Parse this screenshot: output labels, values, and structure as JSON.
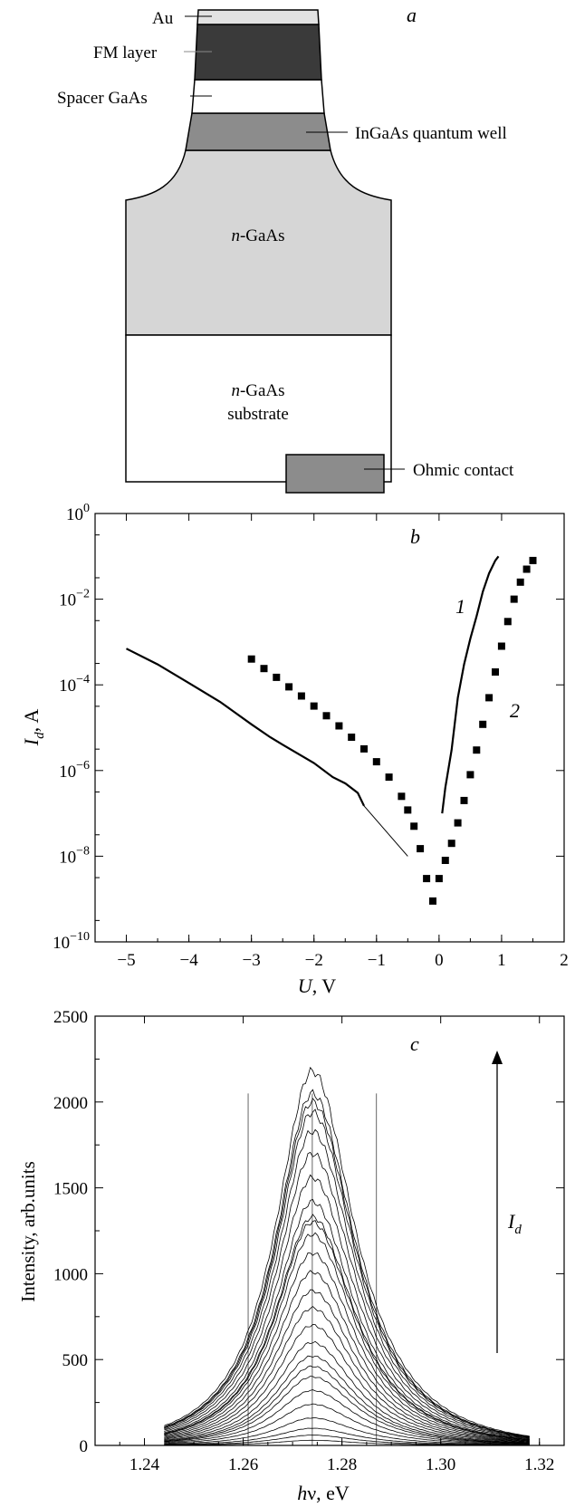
{
  "panel_a": {
    "label": "a",
    "layers": {
      "au": "Au",
      "fm": "FM layer",
      "spacer": "Spacer GaAs",
      "qw": "InGaAs quantum well",
      "ngaas_prefix": "n",
      "ngaas_suffix": "-GaAs",
      "substrate_line2": "substrate",
      "ohmic": "Ohmic contact"
    },
    "colors": {
      "au": "#e2e2e2",
      "fm": "#3a3a3a",
      "spacer": "#ffffff",
      "qw": "#8c8c8c",
      "ngaas": "#d6d6d6",
      "substrate": "#ffffff",
      "ohmic": "#8c8c8c"
    }
  },
  "chart_data": [
    {
      "panel": "b",
      "type": "line",
      "yscale": "log",
      "xlabel_symbol": "U",
      "xlabel_unit": ", V",
      "ylabel_symbol": "I",
      "ylabel_sub": "d",
      "ylabel_unit": ", A",
      "xlim": [
        -5.5,
        2
      ],
      "ylim": [
        1e-10,
        1
      ],
      "xticks": [
        -5,
        -4,
        -3,
        -2,
        -1,
        0,
        1,
        2
      ],
      "xtick_labels": [
        "−5",
        "−4",
        "−3",
        "−2",
        "−1",
        "0",
        "1",
        "2"
      ],
      "yticks": [
        {
          "value": 1,
          "mant": "10",
          "exp": "0"
        },
        {
          "value": 0.01,
          "mant": "10",
          "exp": "−2"
        },
        {
          "value": 0.0001,
          "mant": "10",
          "exp": "−4"
        },
        {
          "value": 1e-06,
          "mant": "10",
          "exp": "−6"
        },
        {
          "value": 1e-08,
          "mant": "10",
          "exp": "−8"
        },
        {
          "value": 1e-10,
          "mant": "10",
          "exp": "−10"
        }
      ],
      "series": [
        {
          "name": "1",
          "style": "line",
          "x": [
            -5.0,
            -4.5,
            -4.0,
            -3.5,
            -3.0,
            -2.7,
            -2.5,
            -2.0,
            -1.7,
            -1.5,
            -1.3,
            -1.2
          ],
          "y": [
            0.0007,
            0.0003,
            0.00011,
            4e-05,
            1.2e-05,
            6e-06,
            4e-06,
            1.5e-06,
            7e-07,
            5e-07,
            3e-07,
            1.5e-07
          ],
          "x2": [
            -1.2,
            -0.5
          ],
          "y2": [
            1.5e-07,
            1e-08
          ],
          "x3": [
            0.05,
            0.1,
            0.2,
            0.3,
            0.4,
            0.5,
            0.6,
            0.7,
            0.8,
            0.9,
            0.95
          ],
          "y3": [
            1e-07,
            4e-07,
            3e-06,
            5e-05,
            0.0003,
            0.0012,
            0.004,
            0.015,
            0.04,
            0.08,
            0.1
          ]
        },
        {
          "name": "2",
          "style": "square-markers",
          "x": [
            -3.0,
            -2.8,
            -2.6,
            -2.4,
            -2.2,
            -2.0,
            -1.8,
            -1.6,
            -1.4,
            -1.2,
            -1.0,
            -0.8,
            -0.6,
            -0.5,
            -0.4,
            -0.3,
            -0.2,
            -0.1,
            0.0,
            0.1,
            0.2,
            0.3,
            0.4,
            0.5,
            0.6,
            0.7,
            0.8,
            0.9,
            1.0,
            1.1,
            1.2,
            1.3,
            1.4,
            1.5
          ],
          "y": [
            0.0004,
            0.00024,
            0.00015,
            9e-05,
            5.5e-05,
            3.2e-05,
            1.9e-05,
            1.1e-05,
            6e-06,
            3.2e-06,
            1.6e-06,
            7e-07,
            2.5e-07,
            1.2e-07,
            5e-08,
            1.5e-08,
            3e-09,
            9e-10,
            3e-09,
            8e-09,
            2e-08,
            6e-08,
            2e-07,
            8e-07,
            3e-06,
            1.2e-05,
            5e-05,
            0.0002,
            0.0008,
            0.003,
            0.01,
            0.025,
            0.05,
            0.08
          ]
        }
      ]
    },
    {
      "panel": "c",
      "type": "line",
      "xlabel_symbol": "h",
      "xlabel_nu": "ν",
      "xlabel_unit": ", eV",
      "ylabel": "Intensity, arb.units",
      "xlim": [
        1.23,
        1.325
      ],
      "ylim": [
        0,
        2500
      ],
      "xticks": [
        1.24,
        1.26,
        1.28,
        1.3,
        1.32
      ],
      "xtick_labels": [
        "1.24",
        "1.26",
        "1.28",
        "1.30",
        "1.32"
      ],
      "yticks": [
        0,
        500,
        1000,
        1500,
        2000,
        2500
      ],
      "ytick_labels": [
        "0",
        "500",
        "1000",
        "1500",
        "2000",
        "2500"
      ],
      "spectra": {
        "center_ev": 1.274,
        "x_start_ev": 1.244,
        "x_end_ev": 1.318,
        "peak_intensities": [
          30,
          60,
          100,
          160,
          240,
          320,
          400,
          460,
          520,
          600,
          700,
          800,
          900,
          1010,
          1120,
          1230,
          1300,
          1330,
          1420,
          1560,
          1700,
          1830,
          1940,
          2000,
          2050,
          2180
        ]
      },
      "arrow": {
        "label_symbol": "I",
        "label_sub": "d"
      }
    }
  ]
}
